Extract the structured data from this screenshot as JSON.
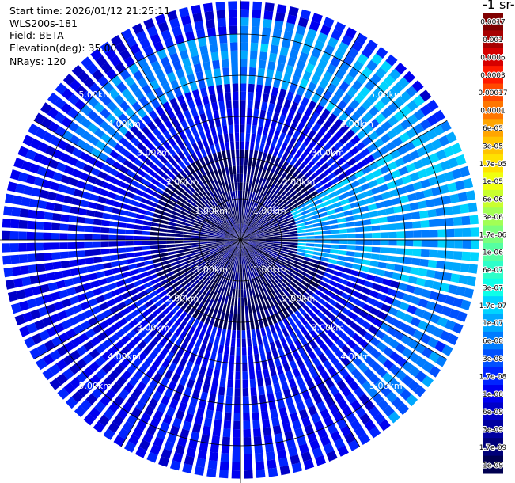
{
  "header": {
    "start_time": "Start time: 2026/01/12 21:25:11",
    "instrument": "WLS200s-181",
    "field": "Field: BETA",
    "elevation": "Elevation(deg): 35.00",
    "nrays": "NRays: 120"
  },
  "legend": {
    "title": "-1 sr-",
    "labels": [
      "0.0017",
      "0.001",
      "0.0006",
      "0.0003",
      "0.00017",
      "0.0001",
      "6e-05",
      "3e-05",
      "1.7e-05",
      "1e-05",
      "6e-06",
      "3e-06",
      "1.7e-06",
      "1e-06",
      "6e-07",
      "3e-07",
      "1.7e-07",
      "1e-07",
      "6e-08",
      "3e-08",
      "1.7e-08",
      "1e-08",
      "6e-09",
      "3e-09",
      "1.7e-09",
      "1e-09"
    ],
    "colors": [
      "#800000",
      "#a80000",
      "#d60000",
      "#ff1a00",
      "#ff4800",
      "#ff7600",
      "#ffa500",
      "#ffc400",
      "#ffe200",
      "#f0ff0e",
      "#c9ff2e",
      "#a2ff55",
      "#7bff7c",
      "#55ffa2",
      "#2effc9",
      "#0effe8",
      "#00d4ff",
      "#00a8ff",
      "#007cff",
      "#0050ff",
      "#0024ff",
      "#0000f0",
      "#0000c8",
      "#0000a0",
      "#000078",
      "#000050"
    ]
  },
  "chart_data": {
    "type": "heatmap",
    "projection": "polar-ppi",
    "field": "BETA",
    "n_rays": 120,
    "elevation_deg": 35.0,
    "range_rings_km": [
      1,
      2,
      3,
      4,
      5
    ],
    "range_labels": [
      "1.00km",
      "2.00km",
      "3.00km",
      "4.00km",
      "5.00km"
    ],
    "max_range_km": 5.8,
    "color_scale": "log",
    "value_range": [
      1e-09,
      0.0017
    ],
    "sector_values": [
      {
        "az_from": 0,
        "az_to": 360,
        "r_from": 0,
        "r_to": 2.2,
        "log_beta": -8.7
      },
      {
        "az_from": 0,
        "az_to": 360,
        "r_from": 2.2,
        "r_to": 5.8,
        "log_beta": -7.9
      },
      {
        "az_from": 300,
        "az_to": 360,
        "r_from": 3.8,
        "r_to": 5.0,
        "log_beta": -7.2
      },
      {
        "az_from": 0,
        "az_to": 70,
        "r_from": 3.8,
        "r_to": 5.4,
        "log_beta": -7.1
      },
      {
        "az_from": 35,
        "az_to": 55,
        "r_from": 4.6,
        "r_to": 5.6,
        "log_beta": -6.9
      },
      {
        "az_from": 60,
        "az_to": 105,
        "r_from": 1.4,
        "r_to": 5.8,
        "log_beta": -7.0
      },
      {
        "az_from": 105,
        "az_to": 140,
        "r_from": 4.0,
        "r_to": 5.8,
        "log_beta": -7.3
      }
    ]
  }
}
